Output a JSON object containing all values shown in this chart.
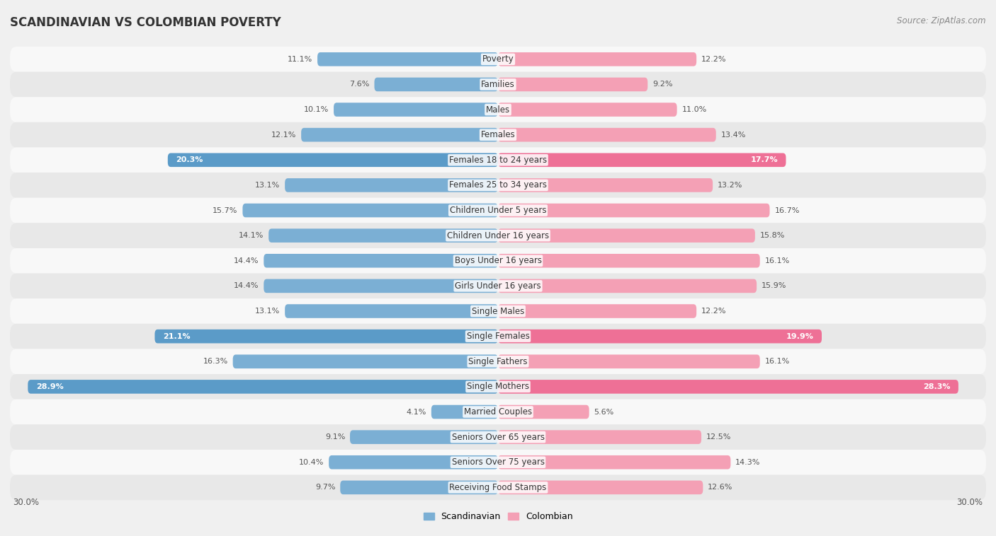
{
  "title": "SCANDINAVIAN VS COLOMBIAN POVERTY",
  "source": "Source: ZipAtlas.com",
  "categories": [
    "Poverty",
    "Families",
    "Males",
    "Females",
    "Females 18 to 24 years",
    "Females 25 to 34 years",
    "Children Under 5 years",
    "Children Under 16 years",
    "Boys Under 16 years",
    "Girls Under 16 years",
    "Single Males",
    "Single Females",
    "Single Fathers",
    "Single Mothers",
    "Married Couples",
    "Seniors Over 65 years",
    "Seniors Over 75 years",
    "Receiving Food Stamps"
  ],
  "scandinavian": [
    11.1,
    7.6,
    10.1,
    12.1,
    20.3,
    13.1,
    15.7,
    14.1,
    14.4,
    14.4,
    13.1,
    21.1,
    16.3,
    28.9,
    4.1,
    9.1,
    10.4,
    9.7
  ],
  "colombian": [
    12.2,
    9.2,
    11.0,
    13.4,
    17.7,
    13.2,
    16.7,
    15.8,
    16.1,
    15.9,
    12.2,
    19.9,
    16.1,
    28.3,
    5.6,
    12.5,
    14.3,
    12.6
  ],
  "scand_color": "#7BAFD4",
  "colom_color": "#F4A0B5",
  "scand_color_highlight": "#5B9BC8",
  "colom_color_highlight": "#EE7096",
  "highlight_rows": [
    4,
    11,
    13
  ],
  "axis_max": 30.0,
  "bar_height": 0.55,
  "background_color": "#f0f0f0",
  "row_bg_odd": "#e8e8e8",
  "row_bg_even": "#f8f8f8",
  "label_fontsize": 8.5,
  "title_fontsize": 12,
  "value_fontsize": 8.0
}
